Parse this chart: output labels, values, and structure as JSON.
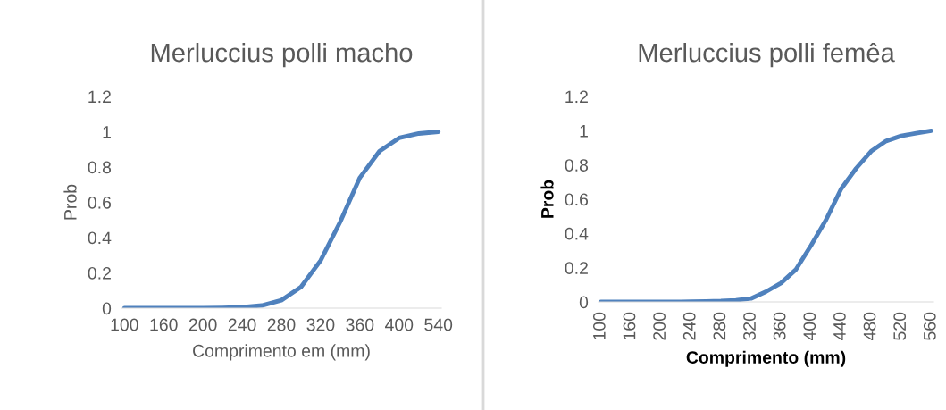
{
  "chart_data": [
    {
      "type": "line",
      "title": "Merluccius polli macho",
      "xlabel": "Comprimento em (mm)",
      "ylabel": "Prob",
      "categories": [
        "100",
        null,
        "160",
        null,
        "200",
        null,
        "240",
        null,
        "280",
        null,
        "320",
        null,
        "360",
        null,
        "400",
        null,
        "540"
      ],
      "series": [
        {
          "color": "#4f81bd",
          "values": [
            0,
            0,
            0,
            0,
            0,
            0.002,
            0.005,
            0.015,
            0.045,
            0.12,
            0.27,
            0.49,
            0.74,
            0.89,
            0.965,
            0.99,
            1.0
          ]
        }
      ],
      "ylim": [
        0,
        1.2
      ],
      "yticks": [
        0,
        0.2,
        0.4,
        0.6,
        0.8,
        1,
        1.2
      ],
      "grid": false,
      "legend": false,
      "marker": "none",
      "line_style": "solid"
    },
    {
      "type": "line",
      "title": "Merluccius polli femêa",
      "xlabel": "Comprimento (mm)",
      "ylabel": "Prob",
      "categories": [
        "100",
        null,
        "160",
        null,
        "200",
        null,
        "240",
        null,
        "280",
        null,
        "320",
        null,
        "360",
        null,
        "400",
        null,
        "440",
        null,
        "480",
        null,
        "520",
        null,
        "560"
      ],
      "series": [
        {
          "color": "#4f81bd",
          "values": [
            0,
            0,
            0,
            0,
            0,
            0,
            0.002,
            0.003,
            0.005,
            0.01,
            0.02,
            0.06,
            0.11,
            0.19,
            0.33,
            0.48,
            0.66,
            0.78,
            0.88,
            0.94,
            0.97,
            0.985,
            1.0
          ]
        }
      ],
      "ylim": [
        0,
        1.2
      ],
      "yticks": [
        0,
        0.2,
        0.4,
        0.6,
        0.8,
        1,
        1.2
      ],
      "grid": false,
      "legend": false,
      "marker": "none",
      "line_style": "solid"
    }
  ]
}
